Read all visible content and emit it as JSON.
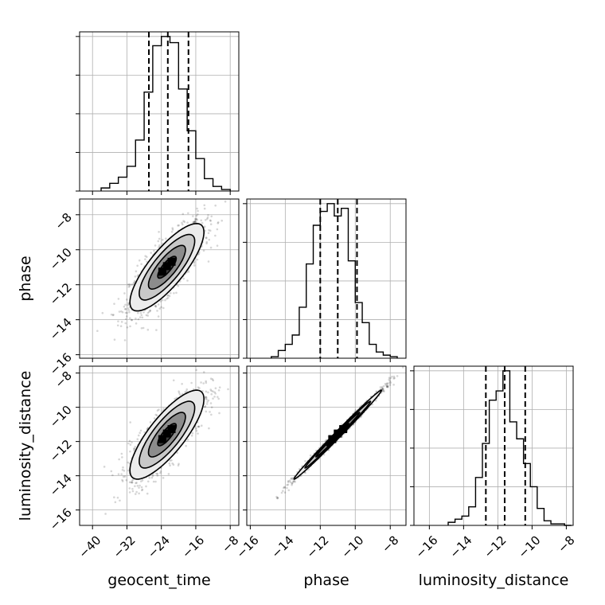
{
  "chart_data": {
    "type": "corner",
    "parameters": [
      {
        "label": "geocent_time",
        "range": [
          -43,
          -6
        ],
        "ticks": [
          -40,
          -32,
          -24,
          -16,
          -8
        ],
        "quantiles": [
          -26.9,
          -22.5,
          -17.7
        ],
        "hist_edges": [
          -38,
          -36,
          -34,
          -32,
          -30,
          -28,
          -26,
          -24,
          -22,
          -20,
          -18,
          -16,
          -14,
          -12,
          -10,
          -8
        ],
        "hist_counts": [
          0.02,
          0.05,
          0.09,
          0.16,
          0.33,
          0.64,
          0.94,
          1.0,
          0.96,
          0.66,
          0.39,
          0.21,
          0.08,
          0.03,
          0.01
        ]
      },
      {
        "label": "phase",
        "range": [
          -16.2,
          -7.1
        ],
        "ticks": [
          -16,
          -14,
          -12,
          -10,
          -8
        ],
        "quantiles": [
          -12.0,
          -11.0,
          -9.9
        ],
        "hist_edges": [
          -14.8,
          -14.4,
          -14.0,
          -13.6,
          -13.2,
          -12.8,
          -12.4,
          -12.0,
          -11.6,
          -11.2,
          -10.8,
          -10.4,
          -10.0,
          -9.6,
          -9.2,
          -8.8,
          -8.4,
          -8.0,
          -7.6
        ],
        "hist_counts": [
          0.01,
          0.05,
          0.09,
          0.15,
          0.33,
          0.61,
          0.86,
          0.95,
          1.0,
          0.92,
          0.97,
          0.63,
          0.36,
          0.23,
          0.09,
          0.04,
          0.02,
          0.01
        ]
      },
      {
        "label": "luminosity_distance",
        "range": [
          -16.9,
          -7.6
        ],
        "ticks": [
          -16,
          -14,
          -12,
          -10,
          -8
        ],
        "quantiles": [
          -12.7,
          -11.6,
          -10.4
        ],
        "hist_edges": [
          -14.9,
          -14.5,
          -14.1,
          -13.7,
          -13.3,
          -12.9,
          -12.5,
          -12.1,
          -11.7,
          -11.3,
          -10.9,
          -10.5,
          -10.1,
          -9.7,
          -9.3,
          -8.9,
          -8.5,
          -8.1,
          -7.7
        ],
        "hist_counts": [
          0.02,
          0.04,
          0.06,
          0.12,
          0.31,
          0.53,
          0.81,
          0.87,
          1.0,
          0.67,
          0.56,
          0.4,
          0.25,
          0.11,
          0.03,
          0.01,
          0.01,
          0.0
        ]
      }
    ],
    "pairs": [
      {
        "x": "geocent_time",
        "y": "phase",
        "mean": [
          -22.7,
          -11.0
        ],
        "std": [
          4.3,
          1.25
        ],
        "correlation": 0.8,
        "n_points": 1400
      },
      {
        "x": "geocent_time",
        "y": "luminosity_distance",
        "mean": [
          -22.7,
          -11.6
        ],
        "std": [
          4.3,
          1.3
        ],
        "correlation": 0.8,
        "n_points": 1400
      },
      {
        "x": "phase",
        "y": "luminosity_distance",
        "mean": [
          -11.0,
          -11.6
        ],
        "std": [
          1.25,
          1.3
        ],
        "correlation": 0.995,
        "n_points": 1400
      }
    ],
    "contour_levels_sigma": [
      0.5,
      1.0,
      1.5,
      2.0
    ],
    "colors": {
      "line": "#000000",
      "grid": "#b0b0b0",
      "background": "#ffffff"
    },
    "grid": true
  }
}
